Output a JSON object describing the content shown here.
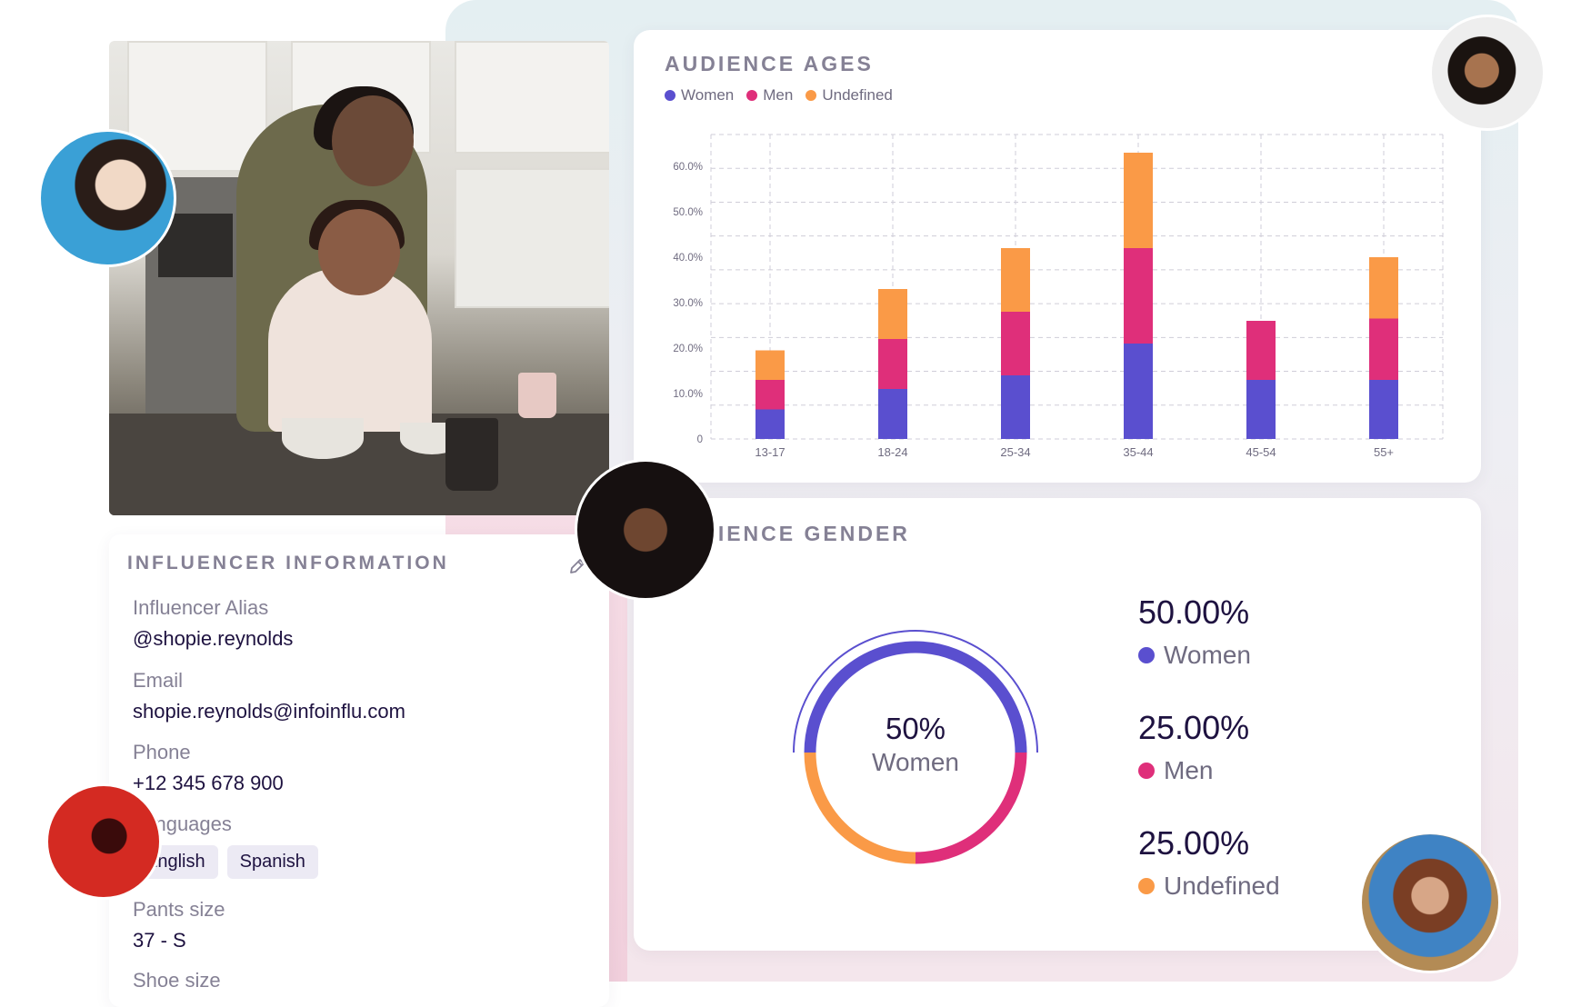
{
  "colors": {
    "women": "#5a4fcf",
    "men": "#df2f7a",
    "undefined": "#fa9a47",
    "title_gray": "#858195",
    "text_dark": "#1e1240"
  },
  "audience_ages": {
    "title": "AUDIENCE AGES",
    "legend": [
      "Women",
      "Men",
      "Undefined"
    ]
  },
  "chart_data": {
    "type": "bar",
    "stacked": true,
    "title": "AUDIENCE AGES",
    "categories": [
      "13-17",
      "18-24",
      "25-34",
      "35-44",
      "45-54",
      "55+"
    ],
    "series": [
      {
        "name": "Women",
        "values": [
          6.5,
          11,
          14,
          21,
          13,
          13
        ]
      },
      {
        "name": "Men",
        "values": [
          6.5,
          11,
          14,
          21,
          13,
          13.5
        ]
      },
      {
        "name": "Undefined",
        "values": [
          6.5,
          11,
          14,
          21,
          0,
          13.5
        ]
      }
    ],
    "y_ticks": [
      "0",
      "10.0%",
      "20.0%",
      "30.0%",
      "40.0%",
      "50.0%",
      "60.0%"
    ],
    "ylim": [
      0,
      67
    ],
    "grid": true,
    "legend_position": "top-left"
  },
  "audience_gender": {
    "title": "AUDIENCE GENDER",
    "center_value": "50%",
    "center_label": "Women",
    "items": [
      {
        "value": "50.00%",
        "label": "Women",
        "color": "#5a4fcf",
        "share": 0.5
      },
      {
        "value": "25.00%",
        "label": "Men",
        "color": "#df2f7a",
        "share": 0.25
      },
      {
        "value": "25.00%",
        "label": "Undefined",
        "color": "#fa9a47",
        "share": 0.25
      }
    ]
  },
  "influencer": {
    "title": "INFLUENCER INFORMATION",
    "edit_icon": "pencil-icon",
    "fields": [
      {
        "label": "Influencer Alias",
        "value": "@shopie.reynolds"
      },
      {
        "label": "Email",
        "value": "shopie.reynolds@infoinflu.com"
      },
      {
        "label": "Phone",
        "value": "+12 345 678 900"
      },
      {
        "label": "Languages",
        "chips": [
          "English",
          "Spanish"
        ]
      },
      {
        "label": "Pants size",
        "value": "37 - S"
      },
      {
        "label": "Shoe size"
      }
    ]
  }
}
